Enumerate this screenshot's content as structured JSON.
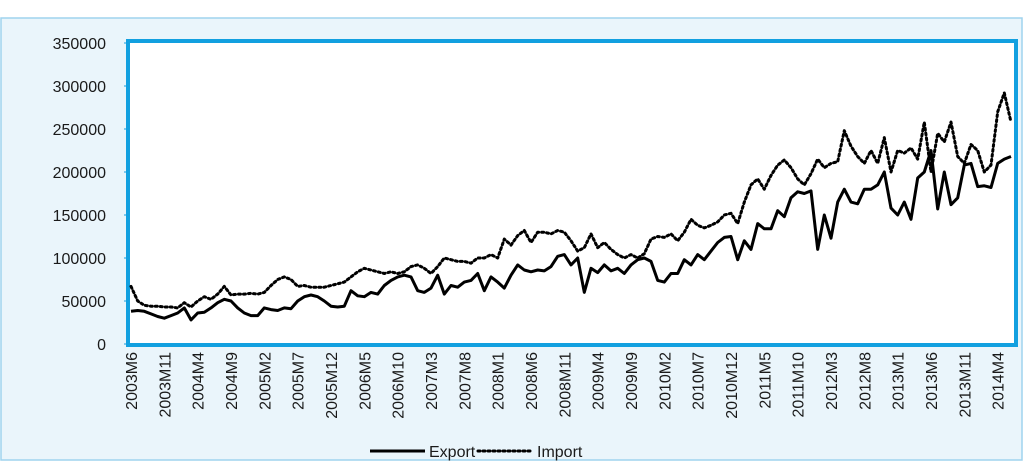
{
  "chart_data": {
    "type": "line",
    "categories": [
      "2003M6",
      null,
      null,
      null,
      null,
      "2003M11",
      null,
      null,
      null,
      null,
      "2004M4",
      null,
      null,
      null,
      null,
      "2004M9",
      null,
      null,
      null,
      null,
      "2005M2",
      null,
      null,
      null,
      null,
      "2005M7",
      null,
      null,
      null,
      null,
      "2005M12",
      null,
      null,
      null,
      null,
      "2006M5",
      null,
      null,
      null,
      null,
      "2006M10",
      null,
      null,
      null,
      null,
      "2007M3",
      null,
      null,
      null,
      null,
      "2007M8",
      null,
      null,
      null,
      null,
      "2008M1",
      null,
      null,
      null,
      null,
      "2008M6",
      null,
      null,
      null,
      null,
      "2008M11",
      null,
      null,
      null,
      null,
      "2009M4",
      null,
      null,
      null,
      null,
      "2009M9",
      null,
      null,
      null,
      null,
      "2010M2",
      null,
      null,
      null,
      null,
      "2010M7",
      null,
      null,
      null,
      null,
      "2010M12",
      null,
      null,
      null,
      null,
      "2011M5",
      null,
      null,
      null,
      null,
      "2011M10",
      null,
      null,
      null,
      null,
      "2012M3",
      null,
      null,
      null,
      null,
      "2012M8",
      null,
      null,
      null,
      null,
      "2013M1",
      null,
      null,
      null,
      null,
      "2013M6",
      null,
      null,
      null,
      null,
      "2013M11",
      null,
      null,
      null,
      null,
      "2014M4",
      null,
      null
    ],
    "series": [
      {
        "name": "Export",
        "color": "#000000",
        "dash": "solid",
        "values": [
          38000,
          39000,
          38000,
          35000,
          32000,
          30000,
          33000,
          36000,
          42000,
          28000,
          36000,
          37000,
          42000,
          48000,
          52000,
          50000,
          42000,
          36000,
          33000,
          33000,
          42000,
          40000,
          39000,
          42000,
          41000,
          50000,
          55000,
          57000,
          55000,
          50000,
          44000,
          43000,
          44000,
          62000,
          56000,
          55000,
          60000,
          58000,
          68000,
          74000,
          78000,
          80000,
          78000,
          62000,
          60000,
          65000,
          80000,
          58000,
          68000,
          66000,
          72000,
          74000,
          82000,
          62000,
          78000,
          72000,
          65000,
          80000,
          92000,
          86000,
          84000,
          86000,
          85000,
          90000,
          102000,
          104000,
          92000,
          100000,
          60000,
          88000,
          83000,
          92000,
          85000,
          88000,
          82000,
          92000,
          98000,
          100000,
          96000,
          74000,
          72000,
          82000,
          82000,
          98000,
          92000,
          104000,
          98000,
          108000,
          118000,
          124000,
          125000,
          98000,
          120000,
          110000,
          140000,
          134000,
          134000,
          155000,
          148000,
          170000,
          177000,
          175000,
          178000,
          110000,
          150000,
          123000,
          165000,
          180000,
          165000,
          163000,
          180000,
          180000,
          185000,
          200000,
          158000,
          150000,
          165000,
          145000,
          193000,
          200000,
          225000,
          157000,
          200000,
          162000,
          170000,
          208000,
          210000,
          183000,
          184000,
          182000,
          210000,
          215000,
          218000
        ]
      },
      {
        "name": "Import",
        "color": "#000000",
        "dash": "dotted",
        "values": [
          67000,
          50000,
          45000,
          44000,
          44000,
          43000,
          43000,
          42000,
          48000,
          43000,
          50000,
          55000,
          52000,
          58000,
          67000,
          57000,
          58000,
          58000,
          59000,
          58000,
          60000,
          68000,
          75000,
          78000,
          75000,
          67000,
          68000,
          66000,
          66000,
          66000,
          68000,
          70000,
          72000,
          78000,
          84000,
          88000,
          86000,
          84000,
          82000,
          84000,
          82000,
          84000,
          90000,
          92000,
          88000,
          82000,
          90000,
          100000,
          98000,
          96000,
          96000,
          94000,
          100000,
          100000,
          104000,
          100000,
          122000,
          115000,
          126000,
          132000,
          118000,
          130000,
          130000,
          128000,
          132000,
          130000,
          120000,
          108000,
          112000,
          128000,
          112000,
          118000,
          110000,
          104000,
          100000,
          104000,
          100000,
          105000,
          122000,
          125000,
          124000,
          128000,
          120000,
          130000,
          145000,
          138000,
          135000,
          138000,
          142000,
          150000,
          152000,
          140000,
          165000,
          185000,
          192000,
          180000,
          196000,
          208000,
          214000,
          205000,
          192000,
          185000,
          198000,
          215000,
          205000,
          210000,
          212000,
          248000,
          230000,
          218000,
          210000,
          225000,
          210000,
          240000,
          200000,
          225000,
          222000,
          228000,
          215000,
          258000,
          200000,
          245000,
          235000,
          258000,
          218000,
          210000,
          232000,
          225000,
          200000,
          208000,
          270000,
          292000,
          258000
        ]
      }
    ],
    "ylim": [
      0,
      350000
    ],
    "yticks": [
      0,
      50000,
      100000,
      150000,
      200000,
      250000,
      300000,
      350000
    ]
  }
}
